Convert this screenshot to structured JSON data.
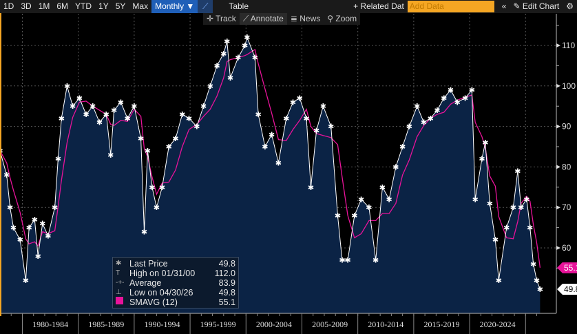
{
  "toolbar": {
    "ranges": [
      "1D",
      "3D",
      "1M",
      "6M",
      "YTD",
      "1Y",
      "5Y",
      "Max"
    ],
    "period": "Monthly ▼",
    "chart_icon": "line-chart-icon",
    "table": "Table",
    "related": "+ Related Dat",
    "add_placeholder": "Add Data",
    "collapse": "«",
    "edit": "✎ Edit Chart",
    "settings": "⚙"
  },
  "subtoolbar": {
    "track": "✛ Track",
    "annotate": "⟋ Annotate",
    "news": "≣ News",
    "zoom": "⚲ Zoom"
  },
  "legend": {
    "rows": [
      {
        "sym": "✱",
        "label": "Last Price",
        "value": "49.8"
      },
      {
        "sym": "T",
        "label": "High on 01/31/00",
        "value": "112.0"
      },
      {
        "sym": "-+-",
        "label": "Average",
        "value": "83.9"
      },
      {
        "sym": "⊥",
        "label": "Low on 04/30/26",
        "value": "49.8"
      }
    ],
    "sma_label": "SMAVG (12)",
    "sma_value": "55.1"
  },
  "colors": {
    "area": "#0b2345",
    "line": "#ffffff",
    "sma": "#e8139a",
    "grid": "#555555"
  },
  "chart_data": {
    "type": "area",
    "title": "",
    "xlabel": "",
    "ylabel": "",
    "xlim": [
      1978.0,
      2026.5
    ],
    "ylim": [
      46,
      116
    ],
    "yticks": [
      60,
      70,
      80,
      90,
      100,
      110
    ],
    "xtick_labels": [
      "1980-1984",
      "1985-1989",
      "1990-1994",
      "1995-1999",
      "2000-2004",
      "2005-2009",
      "2010-2014",
      "2015-2019",
      "2020-2024"
    ],
    "xtick_centers": [
      1982.5,
      1987.5,
      1992.5,
      1997.5,
      2002.5,
      2007.5,
      2012.5,
      2017.5,
      2022.5
    ],
    "last_price_tag": "49.8",
    "sma_tag": "55.1",
    "series": [
      {
        "name": "Last Price",
        "points": [
          [
            1978.0,
            84
          ],
          [
            1978.6,
            78
          ],
          [
            1978.9,
            70
          ],
          [
            1979.2,
            65
          ],
          [
            1979.8,
            62
          ],
          [
            1980.3,
            52
          ],
          [
            1980.6,
            65
          ],
          [
            1981.1,
            67
          ],
          [
            1981.4,
            58
          ],
          [
            1981.8,
            66
          ],
          [
            1982.3,
            63
          ],
          [
            1982.9,
            70
          ],
          [
            1983.2,
            82
          ],
          [
            1983.5,
            92
          ],
          [
            1984.0,
            100
          ],
          [
            1984.5,
            95
          ],
          [
            1985.1,
            97
          ],
          [
            1985.7,
            93
          ],
          [
            1986.3,
            95
          ],
          [
            1986.9,
            91
          ],
          [
            1987.5,
            93
          ],
          [
            1987.9,
            83
          ],
          [
            1988.2,
            94
          ],
          [
            1988.8,
            96
          ],
          [
            1989.4,
            92
          ],
          [
            1990.0,
            95
          ],
          [
            1990.6,
            87
          ],
          [
            1990.9,
            64
          ],
          [
            1991.2,
            84
          ],
          [
            1991.6,
            75
          ],
          [
            1992.0,
            70
          ],
          [
            1992.5,
            75
          ],
          [
            1993.1,
            85
          ],
          [
            1993.7,
            87
          ],
          [
            1994.3,
            93
          ],
          [
            1994.9,
            92
          ],
          [
            1995.6,
            90
          ],
          [
            1996.2,
            95
          ],
          [
            1996.8,
            100
          ],
          [
            1997.4,
            105
          ],
          [
            1998.0,
            108
          ],
          [
            1998.3,
            111
          ],
          [
            1998.6,
            102
          ],
          [
            1999.3,
            107
          ],
          [
            1999.9,
            110
          ],
          [
            2000.1,
            112
          ],
          [
            2000.8,
            107
          ],
          [
            2001.1,
            93
          ],
          [
            2001.7,
            85
          ],
          [
            2002.3,
            88
          ],
          [
            2002.9,
            81
          ],
          [
            2003.6,
            92
          ],
          [
            2004.2,
            96
          ],
          [
            2004.8,
            97
          ],
          [
            2005.4,
            92
          ],
          [
            2005.8,
            75
          ],
          [
            2006.3,
            89
          ],
          [
            2006.9,
            95
          ],
          [
            2007.6,
            90
          ],
          [
            2008.2,
            68
          ],
          [
            2008.6,
            57
          ],
          [
            2009.1,
            57
          ],
          [
            2009.7,
            68
          ],
          [
            2010.3,
            72
          ],
          [
            2011.0,
            70
          ],
          [
            2011.6,
            57
          ],
          [
            2012.2,
            75
          ],
          [
            2012.8,
            72
          ],
          [
            2013.4,
            80
          ],
          [
            2014.0,
            85
          ],
          [
            2014.6,
            90
          ],
          [
            2015.3,
            95
          ],
          [
            2015.9,
            91
          ],
          [
            2016.5,
            92
          ],
          [
            2017.1,
            94
          ],
          [
            2017.7,
            97
          ],
          [
            2018.3,
            99
          ],
          [
            2018.9,
            96
          ],
          [
            2019.6,
            97
          ],
          [
            2020.2,
            99
          ],
          [
            2020.5,
            72
          ],
          [
            2021.1,
            82
          ],
          [
            2021.4,
            86
          ],
          [
            2021.8,
            71
          ],
          [
            2022.3,
            62
          ],
          [
            2022.6,
            52
          ],
          [
            2023.3,
            65
          ],
          [
            2023.9,
            70
          ],
          [
            2024.3,
            79
          ],
          [
            2024.6,
            70
          ],
          [
            2025.1,
            72
          ],
          [
            2025.4,
            65
          ],
          [
            2025.7,
            56
          ],
          [
            2026.0,
            52
          ],
          [
            2026.3,
            49.8
          ]
        ]
      },
      {
        "name": "SMAVG (12)",
        "computed_from": "Last Price"
      }
    ]
  }
}
